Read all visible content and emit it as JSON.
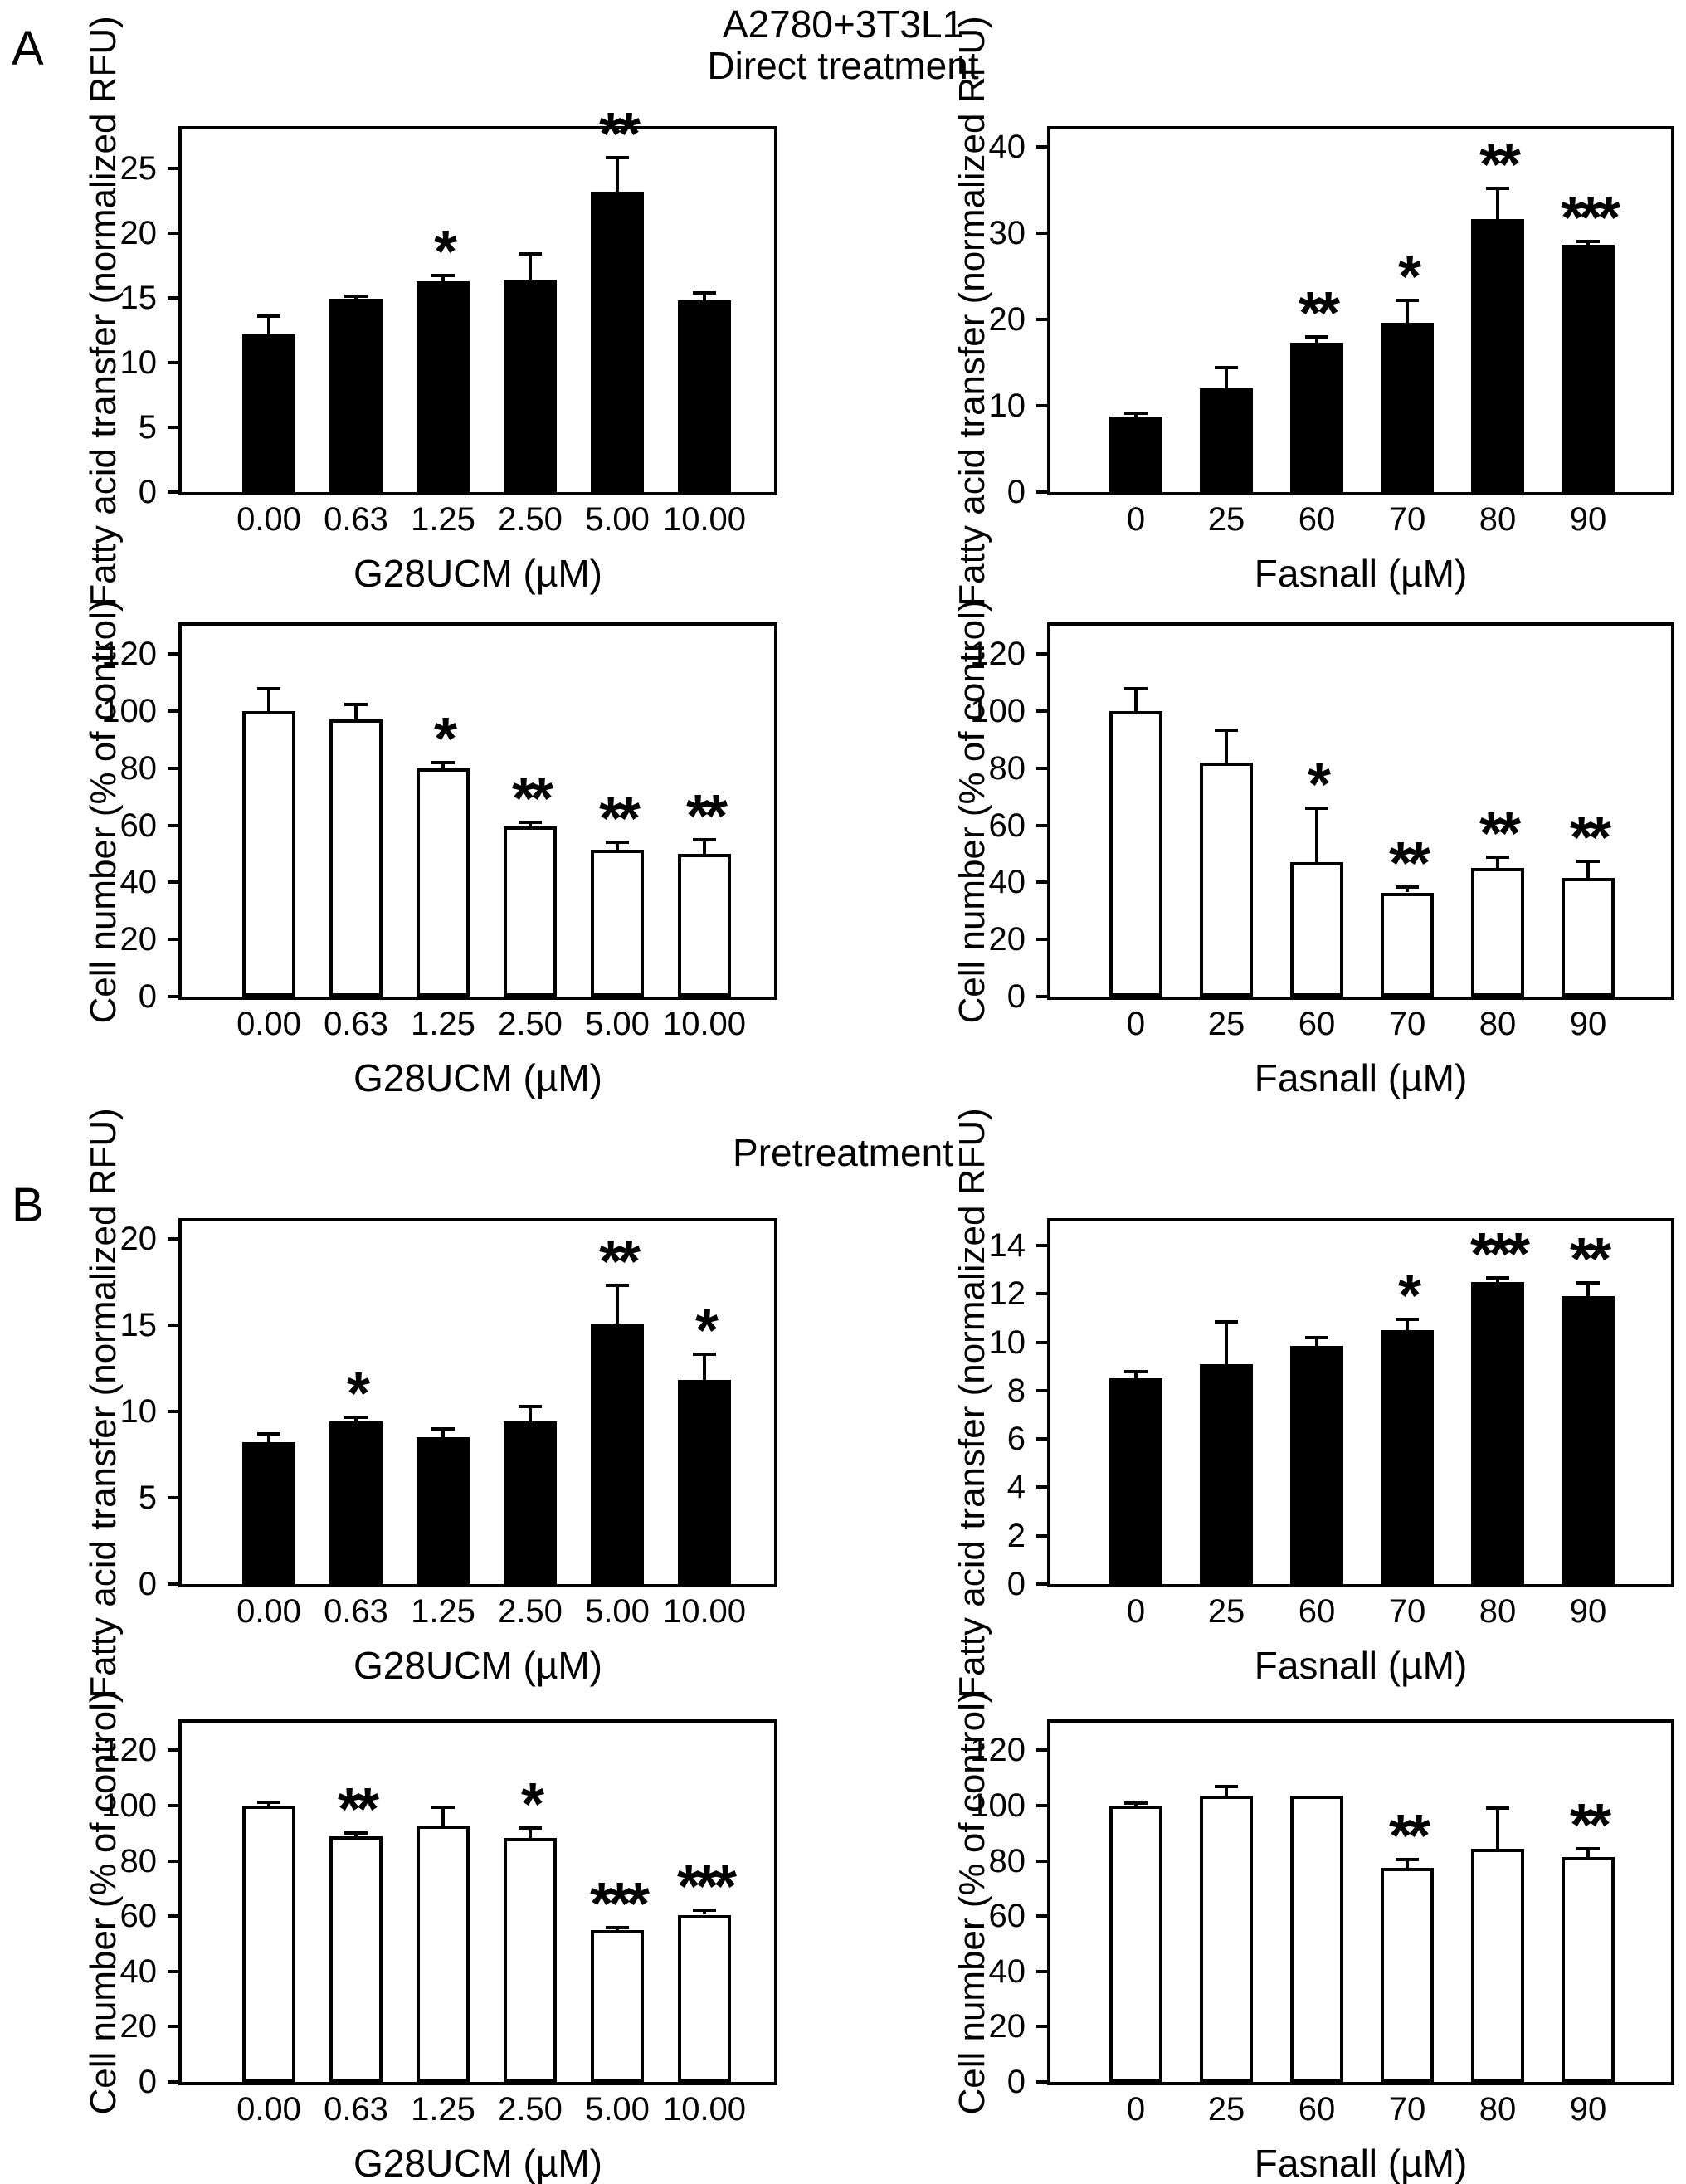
{
  "page": {
    "panel_a_label": "A",
    "panel_b_label": "B",
    "title_line1": "A2780+3T3L1",
    "title_line2": "Direct treatment",
    "panel_b_title": "Pretreatment"
  },
  "colors": {
    "bar_fill": "#000000",
    "bar_open_fill": "#ffffff",
    "axis": "#000000",
    "background": "#ffffff"
  },
  "chart_data": [
    {
      "id": "panelA-fatty-acid-g28ucm",
      "type": "bar",
      "bar_fill": "black",
      "ylabel": "Fatty acid transfer (normalized RFU)",
      "xlabel": "G28UCM (µM)",
      "categories": [
        "0.00",
        "0.63",
        "1.25",
        "2.50",
        "5.00",
        "10.00"
      ],
      "values": [
        12.2,
        14.9,
        16.3,
        16.4,
        23.2,
        14.8
      ],
      "errors": [
        1.4,
        0.2,
        0.4,
        2.0,
        2.6,
        0.6
      ],
      "significance": [
        "",
        "",
        "*",
        "",
        "**",
        ""
      ],
      "yticks": [
        0,
        5,
        10,
        15,
        20,
        25
      ],
      "ylim": [
        0,
        28
      ],
      "grid": false,
      "legend": "none"
    },
    {
      "id": "panelA-fatty-acid-fasnall",
      "type": "bar",
      "bar_fill": "black",
      "ylabel": "Fatty acid transfer (normalized RFU)",
      "xlabel": "Fasnall (µM)",
      "categories": [
        "0",
        "25",
        "60",
        "70",
        "80",
        "90"
      ],
      "values": [
        8.7,
        12.0,
        17.3,
        19.6,
        31.6,
        28.6
      ],
      "errors": [
        0.4,
        2.4,
        0.7,
        2.6,
        3.6,
        0.4
      ],
      "significance": [
        "",
        "",
        "**",
        "*",
        "**",
        "***"
      ],
      "yticks": [
        0,
        10,
        20,
        30,
        40
      ],
      "ylim": [
        0,
        42
      ],
      "grid": false,
      "legend": "none"
    },
    {
      "id": "panelA-cell-number-g28ucm",
      "type": "bar",
      "bar_fill": "white",
      "ylabel": "Cell number (% of control)",
      "xlabel": "G28UCM (µM)",
      "categories": [
        "0.00",
        "0.63",
        "1.25",
        "2.50",
        "5.00",
        "10.00"
      ],
      "values": [
        100,
        97,
        80,
        59.5,
        51.5,
        50
      ],
      "errors": [
        8,
        5.5,
        2,
        1.5,
        2.5,
        5
      ],
      "significance": [
        "",
        "",
        "*",
        "**",
        "**",
        "**"
      ],
      "yticks": [
        0,
        20,
        40,
        60,
        80,
        100,
        120
      ],
      "ylim": [
        0,
        130
      ],
      "grid": false,
      "legend": "none"
    },
    {
      "id": "panelA-cell-number-fasnall",
      "type": "bar",
      "bar_fill": "white",
      "ylabel": "Cell number (% of control)",
      "xlabel": "Fasnall (µM)",
      "categories": [
        "0",
        "25",
        "60",
        "70",
        "80",
        "90"
      ],
      "values": [
        100,
        82,
        47,
        36.5,
        45,
        41.5
      ],
      "errors": [
        8,
        11.5,
        19,
        2,
        4,
        6
      ],
      "significance": [
        "",
        "",
        "*",
        "**",
        "**",
        "**"
      ],
      "yticks": [
        0,
        20,
        40,
        60,
        80,
        100,
        120
      ],
      "ylim": [
        0,
        130
      ],
      "grid": false,
      "legend": "none"
    },
    {
      "id": "panelB-fatty-acid-g28ucm",
      "type": "bar",
      "bar_fill": "black",
      "ylabel": "Fatty acid transfer (normalized RFU)",
      "xlabel": "G28UCM (µM)",
      "categories": [
        "0.00",
        "0.63",
        "1.25",
        "2.50",
        "5.00",
        "10.00"
      ],
      "values": [
        8.2,
        9.4,
        8.5,
        9.4,
        15.1,
        11.8
      ],
      "errors": [
        0.5,
        0.25,
        0.5,
        0.9,
        2.2,
        1.5
      ],
      "significance": [
        "",
        "*",
        "",
        "",
        "**",
        "*"
      ],
      "yticks": [
        0,
        5,
        10,
        15,
        20
      ],
      "ylim": [
        0,
        21
      ],
      "grid": false,
      "legend": "none"
    },
    {
      "id": "panelB-fatty-acid-fasnall",
      "type": "bar",
      "bar_fill": "black",
      "ylabel": "Fatty acid transfer (normalized RFU)",
      "xlabel": "Fasnall (µM)",
      "categories": [
        "0",
        "25",
        "60",
        "70",
        "80",
        "90"
      ],
      "values": [
        8.5,
        9.1,
        9.85,
        10.5,
        12.5,
        11.9
      ],
      "errors": [
        0.3,
        1.75,
        0.35,
        0.45,
        0.15,
        0.55
      ],
      "significance": [
        "",
        "",
        "",
        "*",
        "***",
        "**"
      ],
      "yticks": [
        0,
        2,
        4,
        6,
        8,
        10,
        12,
        14
      ],
      "ylim": [
        0,
        15
      ],
      "grid": false,
      "legend": "none"
    },
    {
      "id": "panelB-cell-number-g28ucm",
      "type": "bar",
      "bar_fill": "white",
      "ylabel": "Cell number (% of control)",
      "xlabel": "G28UCM (µM)",
      "categories": [
        "0.00",
        "0.63",
        "1.25",
        "2.50",
        "5.00",
        "10.00"
      ],
      "values": [
        100,
        88.9,
        92.8,
        88.3,
        55,
        60.5
      ],
      "errors": [
        1.2,
        1.2,
        6.5,
        3.5,
        0.7,
        1.5
      ],
      "significance": [
        "",
        "**",
        "",
        "*",
        "***",
        "***"
      ],
      "yticks": [
        0,
        20,
        40,
        60,
        80,
        100,
        120
      ],
      "ylim": [
        0,
        130
      ],
      "grid": false,
      "legend": "none"
    },
    {
      "id": "panelB-cell-number-fasnall",
      "type": "bar",
      "bar_fill": "white",
      "ylabel": "Cell number (% of control)",
      "xlabel": "Fasnall (µM)",
      "categories": [
        "0",
        "25",
        "60",
        "70",
        "80",
        "90"
      ],
      "values": [
        100,
        103.5,
        103.5,
        77.5,
        84.5,
        81.5
      ],
      "errors": [
        1,
        3.5,
        0,
        3,
        14.5,
        3
      ],
      "significance": [
        "",
        "",
        "",
        "**",
        "",
        "**"
      ],
      "yticks": [
        0,
        20,
        40,
        60,
        80,
        100,
        120
      ],
      "ylim": [
        0,
        130
      ],
      "grid": false,
      "legend": "none"
    }
  ]
}
